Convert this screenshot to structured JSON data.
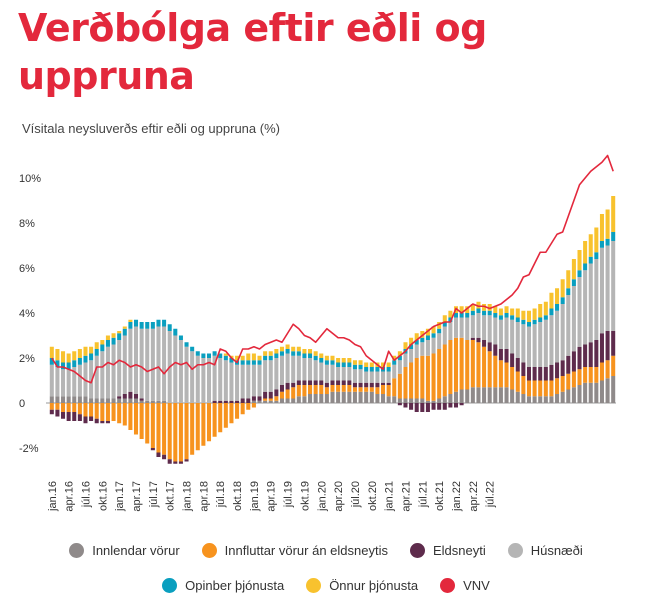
{
  "title": "Verðbólga eftir eðli og uppruna",
  "subtitle": "Vísitala neysluverðs eftir eðli og uppruna (%)",
  "colors": {
    "innlendar": "#8f8a8a",
    "innfluttar": "#f7931e",
    "eldsneyti": "#5e2b4c",
    "husnaedi": "#b5b5b5",
    "opinber": "#0a9fbf",
    "onnur": "#f8c22e",
    "vnv": "#e3283c"
  },
  "chart_data": {
    "type": "bar",
    "stacked": true,
    "ylim": [
      -3,
      10
    ],
    "yticks": [
      "10%",
      "8%",
      "6%",
      "4%",
      "2%",
      "0",
      "-2%"
    ],
    "x_start": "2016-01",
    "x_end": "2022-07",
    "xtick_labels": [
      "jan.16",
      "apr.16",
      "júl.16",
      "okt.16",
      "jan.17",
      "apr.17",
      "júl.17",
      "okt.17",
      "jan.18",
      "apr.18",
      "júl.18",
      "okt.18",
      "jan.19",
      "apr.19",
      "júl.19",
      "okt.19",
      "jan.20",
      "apr.20",
      "júl.20",
      "okt.20",
      "jan.21",
      "apr.21",
      "júl.21",
      "okt.21",
      "jan.22",
      "apr.22",
      "júl.22"
    ],
    "legend_row1": [
      "Innlendar vörur",
      "Innfluttar vörur án eldsneytis",
      "Eldsneyti",
      "Húsnæði"
    ],
    "legend_row2": [
      "Opinber þjónusta",
      "Önnur þjónusta",
      "VNV"
    ],
    "series": [
      {
        "name": "Innlendar vörur",
        "key": "innlendar",
        "values": [
          0.3,
          0.3,
          0.3,
          0.3,
          0.3,
          0.3,
          0.3,
          0.2,
          0.2,
          0.2,
          0.2,
          0.2,
          0.2,
          0.2,
          0.2,
          0.2,
          0.1,
          0.1,
          0.1,
          0.1,
          0.1,
          0.0,
          0.0,
          0.0,
          0.0,
          0.0,
          0.0,
          0.0,
          0.0,
          0.0,
          0.0,
          0.0,
          0.0,
          0.0,
          0.0,
          0.0,
          0.1,
          0.1,
          0.1,
          0.1,
          0.1,
          0.2,
          0.2,
          0.2,
          0.3,
          0.3,
          0.4,
          0.4,
          0.4,
          0.4,
          0.5,
          0.5,
          0.5,
          0.5,
          0.5,
          0.5,
          0.5,
          0.5,
          0.4,
          0.4,
          0.3,
          0.3,
          0.2,
          0.2,
          0.2,
          0.2,
          0.2,
          0.1,
          0.1,
          0.2,
          0.3,
          0.4,
          0.5,
          0.6,
          0.6,
          0.7,
          0.7,
          0.7,
          0.7,
          0.7,
          0.7,
          0.7,
          0.6,
          0.5,
          0.4,
          0.3,
          0.3,
          0.3,
          0.3,
          0.3,
          0.4,
          0.5,
          0.6,
          0.7,
          0.8,
          0.9,
          0.9,
          0.9,
          1.0,
          1.1,
          1.2
        ]
      },
      {
        "name": "Innfluttar vörur án eldsneytis",
        "key": "innfluttar",
        "values": [
          -0.3,
          -0.3,
          -0.4,
          -0.4,
          -0.4,
          -0.5,
          -0.6,
          -0.6,
          -0.7,
          -0.8,
          -0.8,
          -0.8,
          -0.9,
          -1.0,
          -1.2,
          -1.4,
          -1.6,
          -1.8,
          -2.0,
          -2.2,
          -2.3,
          -2.5,
          -2.6,
          -2.6,
          -2.5,
          -2.3,
          -2.1,
          -1.9,
          -1.7,
          -1.5,
          -1.3,
          -1.1,
          -0.9,
          -0.7,
          -0.5,
          -0.3,
          -0.2,
          0.0,
          0.1,
          0.1,
          0.2,
          0.3,
          0.4,
          0.5,
          0.5,
          0.5,
          0.4,
          0.4,
          0.4,
          0.3,
          0.3,
          0.3,
          0.3,
          0.3,
          0.2,
          0.2,
          0.2,
          0.2,
          0.3,
          0.4,
          0.5,
          0.8,
          1.1,
          1.4,
          1.6,
          1.8,
          1.9,
          2.0,
          2.1,
          2.2,
          2.3,
          2.4,
          2.4,
          2.3,
          2.2,
          2.1,
          2.0,
          1.8,
          1.6,
          1.4,
          1.2,
          1.1,
          1.0,
          0.9,
          0.8,
          0.7,
          0.7,
          0.7,
          0.7,
          0.7,
          0.7,
          0.7,
          0.7,
          0.7,
          0.7,
          0.7,
          0.7,
          0.7,
          0.8,
          0.8,
          0.9
        ]
      },
      {
        "name": "Eldsneyti",
        "key": "eldsneyti",
        "values": [
          -0.2,
          -0.3,
          -0.3,
          -0.4,
          -0.4,
          -0.3,
          -0.3,
          -0.2,
          -0.2,
          -0.1,
          -0.1,
          0.0,
          0.1,
          0.2,
          0.3,
          0.2,
          0.1,
          0.0,
          -0.1,
          -0.2,
          -0.2,
          -0.2,
          -0.1,
          -0.1,
          -0.1,
          0.0,
          0.0,
          0.0,
          0.0,
          0.1,
          0.1,
          0.1,
          0.1,
          0.1,
          0.2,
          0.2,
          0.2,
          0.2,
          0.3,
          0.3,
          0.3,
          0.3,
          0.3,
          0.2,
          0.2,
          0.2,
          0.2,
          0.2,
          0.2,
          0.2,
          0.2,
          0.2,
          0.2,
          0.2,
          0.2,
          0.2,
          0.2,
          0.2,
          0.2,
          0.1,
          0.1,
          0.0,
          -0.1,
          -0.2,
          -0.3,
          -0.4,
          -0.4,
          -0.4,
          -0.3,
          -0.3,
          -0.3,
          -0.2,
          -0.2,
          -0.1,
          0.0,
          0.1,
          0.2,
          0.3,
          0.4,
          0.5,
          0.5,
          0.6,
          0.6,
          0.6,
          0.6,
          0.6,
          0.6,
          0.6,
          0.6,
          0.7,
          0.7,
          0.7,
          0.8,
          0.9,
          1.0,
          1.0,
          1.1,
          1.2,
          1.3,
          1.3,
          1.1
        ]
      },
      {
        "name": "Húsnæði",
        "key": "husnaedi",
        "values": [
          1.4,
          1.3,
          1.2,
          1.2,
          1.3,
          1.4,
          1.5,
          1.7,
          1.9,
          2.1,
          2.3,
          2.4,
          2.5,
          2.6,
          2.8,
          3.0,
          3.1,
          3.2,
          3.2,
          3.3,
          3.3,
          3.2,
          3.0,
          2.8,
          2.5,
          2.3,
          2.1,
          2.0,
          2.0,
          2.0,
          1.9,
          1.8,
          1.7,
          1.6,
          1.5,
          1.5,
          1.4,
          1.4,
          1.4,
          1.4,
          1.4,
          1.3,
          1.3,
          1.2,
          1.1,
          1.0,
          1.0,
          0.9,
          0.8,
          0.8,
          0.7,
          0.6,
          0.6,
          0.6,
          0.6,
          0.6,
          0.5,
          0.5,
          0.5,
          0.5,
          0.5,
          0.6,
          0.6,
          0.6,
          0.6,
          0.6,
          0.6,
          0.7,
          0.7,
          0.7,
          0.8,
          0.8,
          0.9,
          0.9,
          1.0,
          1.0,
          1.1,
          1.1,
          1.2,
          1.2,
          1.3,
          1.4,
          1.5,
          1.6,
          1.7,
          1.8,
          1.9,
          2.0,
          2.1,
          2.2,
          2.3,
          2.5,
          2.7,
          2.9,
          3.1,
          3.3,
          3.5,
          3.6,
          3.8,
          3.8,
          4.0
        ]
      },
      {
        "name": "Opinber þjónusta",
        "key": "opinber",
        "values": [
          0.3,
          0.3,
          0.3,
          0.3,
          0.3,
          0.3,
          0.3,
          0.3,
          0.3,
          0.3,
          0.3,
          0.3,
          0.3,
          0.3,
          0.3,
          0.3,
          0.3,
          0.3,
          0.3,
          0.3,
          0.3,
          0.3,
          0.3,
          0.2,
          0.2,
          0.2,
          0.2,
          0.2,
          0.2,
          0.2,
          0.2,
          0.2,
          0.2,
          0.2,
          0.2,
          0.2,
          0.2,
          0.2,
          0.2,
          0.2,
          0.2,
          0.2,
          0.2,
          0.2,
          0.2,
          0.2,
          0.2,
          0.2,
          0.2,
          0.2,
          0.2,
          0.2,
          0.2,
          0.2,
          0.2,
          0.2,
          0.2,
          0.2,
          0.2,
          0.2,
          0.2,
          0.2,
          0.2,
          0.2,
          0.2,
          0.2,
          0.2,
          0.2,
          0.2,
          0.2,
          0.2,
          0.2,
          0.2,
          0.2,
          0.2,
          0.2,
          0.2,
          0.2,
          0.2,
          0.2,
          0.2,
          0.2,
          0.2,
          0.2,
          0.2,
          0.2,
          0.2,
          0.2,
          0.2,
          0.3,
          0.3,
          0.3,
          0.3,
          0.3,
          0.3,
          0.3,
          0.3,
          0.3,
          0.3,
          0.3,
          0.4
        ]
      },
      {
        "name": "Önnur þjónusta",
        "key": "onnur",
        "values": [
          0.5,
          0.5,
          0.5,
          0.4,
          0.4,
          0.4,
          0.4,
          0.3,
          0.3,
          0.2,
          0.2,
          0.2,
          0.1,
          0.1,
          0.1,
          0.0,
          0.0,
          0.0,
          0.0,
          0.0,
          0.0,
          0.0,
          0.0,
          0.0,
          0.0,
          0.0,
          0.0,
          0.0,
          0.0,
          0.0,
          0.0,
          0.1,
          0.1,
          0.2,
          0.2,
          0.3,
          0.3,
          0.2,
          0.2,
          0.2,
          0.2,
          0.2,
          0.2,
          0.2,
          0.2,
          0.2,
          0.2,
          0.2,
          0.2,
          0.2,
          0.2,
          0.2,
          0.2,
          0.2,
          0.2,
          0.2,
          0.2,
          0.2,
          0.2,
          0.2,
          0.2,
          0.2,
          0.2,
          0.3,
          0.3,
          0.3,
          0.3,
          0.3,
          0.3,
          0.3,
          0.3,
          0.3,
          0.3,
          0.3,
          0.3,
          0.3,
          0.3,
          0.3,
          0.3,
          0.3,
          0.3,
          0.3,
          0.3,
          0.4,
          0.4,
          0.5,
          0.5,
          0.6,
          0.6,
          0.7,
          0.7,
          0.8,
          0.8,
          0.9,
          0.9,
          1.0,
          1.0,
          1.1,
          1.2,
          1.3,
          1.6
        ]
      },
      {
        "name": "VNV",
        "key": "vnv",
        "type": "line",
        "values": [
          2.0,
          1.6,
          1.6,
          1.5,
          1.4,
          1.2,
          1.0,
          0.9,
          1.6,
          1.6,
          1.8,
          1.7,
          1.9,
          1.8,
          1.6,
          1.7,
          1.6,
          1.4,
          1.5,
          1.6,
          1.3,
          1.6,
          1.8,
          1.7,
          1.8,
          1.5,
          1.7,
          1.7,
          1.8,
          1.7,
          2.4,
          2.3,
          2.0,
          1.8,
          2.4,
          2.4,
          2.5,
          2.4,
          2.6,
          2.7,
          2.8,
          2.7,
          3.1,
          3.5,
          3.3,
          3.0,
          2.9,
          2.7,
          3.0,
          3.3,
          3.1,
          2.9,
          2.9,
          2.8,
          2.6,
          2.5,
          2.1,
          1.9,
          1.7,
          1.5,
          2.3,
          1.9,
          2.1,
          2.3,
          2.6,
          2.8,
          3.0,
          3.2,
          3.4,
          3.5,
          3.6,
          3.6,
          4.2,
          4.0,
          4.2,
          4.4,
          4.3,
          4.3,
          4.2,
          4.3,
          4.4,
          4.6,
          4.8,
          5.1,
          5.6,
          5.7,
          6.2,
          6.7,
          6.7,
          7.1,
          7.5,
          7.6,
          8.3,
          9.0,
          9.7,
          10.0,
          10.3,
          10.5,
          10.7,
          11.0,
          10.3
        ]
      }
    ]
  }
}
